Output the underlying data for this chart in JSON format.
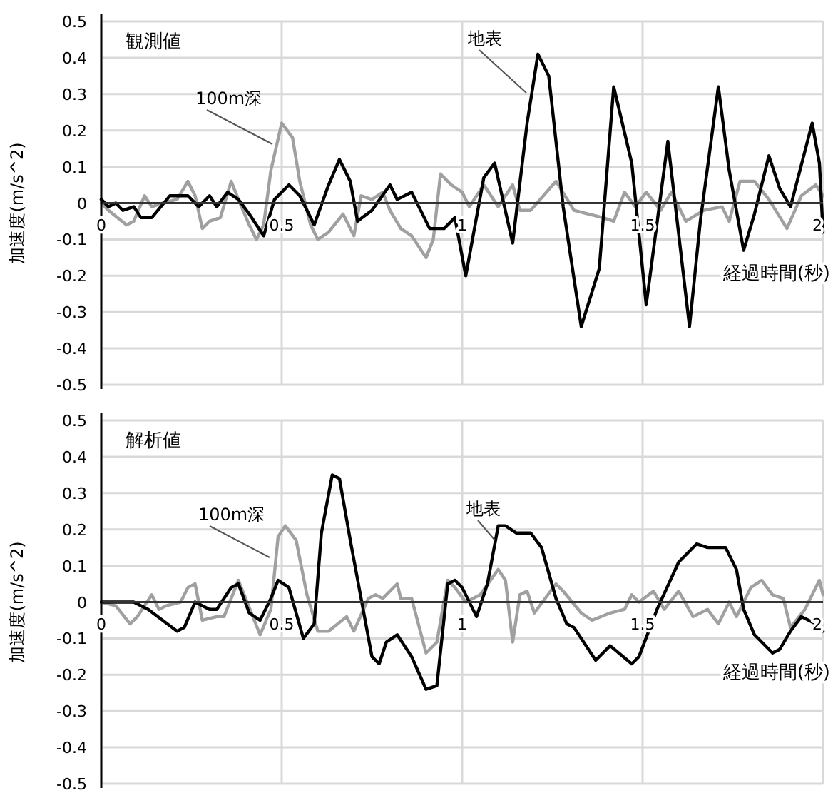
{
  "chart_data": [
    {
      "type": "line",
      "title": "観測値",
      "ylabel": "加速度(m/s^2)",
      "xlabel": "経過時間(秒)",
      "xlim": [
        0,
        2
      ],
      "ylim": [
        -0.5,
        0.5
      ],
      "xticks": [
        0,
        0.5,
        1,
        1.5,
        2
      ],
      "yticks": [
        -0.5,
        -0.4,
        -0.3,
        -0.2,
        -0.1,
        0,
        0.1,
        0.2,
        0.3,
        0.4,
        0.5
      ],
      "grid": true,
      "legend": false,
      "marker": "none",
      "line_style": "solid",
      "series": [
        {
          "name": "100m深",
          "color": "#a0a0a0",
          "x": [
            0,
            0.02,
            0.07,
            0.09,
            0.12,
            0.14,
            0.17,
            0.21,
            0.24,
            0.26,
            0.28,
            0.3,
            0.33,
            0.36,
            0.38,
            0.41,
            0.43,
            0.45,
            0.47,
            0.5,
            0.53,
            0.55,
            0.58,
            0.6,
            0.63,
            0.67,
            0.7,
            0.72,
            0.75,
            0.78,
            0.8,
            0.83,
            0.86,
            0.9,
            0.92,
            0.94,
            0.97,
            1.0,
            1.02,
            1.06,
            1.1,
            1.14,
            1.16,
            1.19,
            1.26,
            1.31,
            1.35,
            1.39,
            1.42,
            1.45,
            1.48,
            1.51,
            1.55,
            1.58,
            1.62,
            1.67,
            1.72,
            1.74,
            1.77,
            1.81,
            1.85,
            1.9,
            1.94,
            1.98,
            2.0
          ],
          "values": [
            0,
            -0.02,
            -0.06,
            -0.05,
            0.02,
            -0.01,
            0,
            0.01,
            0.06,
            0.02,
            -0.07,
            -0.05,
            -0.04,
            0.06,
            0.01,
            -0.06,
            -0.1,
            -0.06,
            0.09,
            0.22,
            0.18,
            0.06,
            -0.06,
            -0.1,
            -0.08,
            -0.03,
            -0.09,
            0.02,
            0.01,
            0.03,
            -0.02,
            -0.07,
            -0.09,
            -0.15,
            -0.1,
            0.08,
            0.05,
            0.03,
            -0.01,
            0.05,
            -0.01,
            0.05,
            -0.02,
            -0.02,
            0.06,
            -0.02,
            -0.03,
            -0.04,
            -0.05,
            0.03,
            -0.01,
            0.03,
            -0.02,
            0.03,
            -0.05,
            -0.02,
            -0.01,
            -0.05,
            0.06,
            0.06,
            0.01,
            -0.07,
            0.02,
            0.05,
            0.02
          ]
        },
        {
          "name": "地表",
          "color": "#000000",
          "x": [
            0,
            0.02,
            0.04,
            0.06,
            0.09,
            0.11,
            0.14,
            0.19,
            0.22,
            0.24,
            0.27,
            0.3,
            0.32,
            0.35,
            0.38,
            0.41,
            0.45,
            0.48,
            0.52,
            0.55,
            0.59,
            0.63,
            0.66,
            0.69,
            0.71,
            0.75,
            0.8,
            0.82,
            0.86,
            0.91,
            0.95,
            0.98,
            1.01,
            1.06,
            1.09,
            1.14,
            1.18,
            1.21,
            1.24,
            1.28,
            1.33,
            1.38,
            1.42,
            1.47,
            1.51,
            1.57,
            1.63,
            1.66,
            1.71,
            1.74,
            1.78,
            1.81,
            1.85,
            1.88,
            1.91,
            1.97,
            1.99,
            2.0
          ],
          "values": [
            0.01,
            -0.01,
            0,
            -0.02,
            -0.01,
            -0.04,
            -0.04,
            0.02,
            0.02,
            0.02,
            -0.01,
            0.02,
            -0.01,
            0.03,
            0.01,
            -0.03,
            -0.09,
            0.01,
            0.05,
            0.02,
            -0.06,
            0.05,
            0.12,
            0.06,
            -0.05,
            -0.02,
            0.05,
            0.01,
            0.03,
            -0.07,
            -0.07,
            -0.04,
            -0.2,
            0.07,
            0.11,
            -0.11,
            0.22,
            0.41,
            0.35,
            -0.01,
            -0.34,
            -0.18,
            0.32,
            0.11,
            -0.28,
            0.17,
            -0.34,
            -0.05,
            0.32,
            0.09,
            -0.13,
            -0.03,
            0.13,
            0.04,
            -0.01,
            0.22,
            0.11,
            -0.08
          ]
        }
      ]
    },
    {
      "type": "line",
      "title": "解析値",
      "ylabel": "加速度(m/s^2)",
      "xlabel": "経過時間(秒)",
      "xlim": [
        0,
        2
      ],
      "ylim": [
        -0.5,
        0.5
      ],
      "xticks": [
        0,
        0.5,
        1,
        1.5,
        2
      ],
      "yticks": [
        -0.5,
        -0.4,
        -0.3,
        -0.2,
        -0.1,
        0,
        0.1,
        0.2,
        0.3,
        0.4,
        0.5
      ],
      "grid": true,
      "legend": false,
      "marker": "none",
      "line_style": "solid",
      "series": [
        {
          "name": "100m深",
          "color": "#a0a0a0",
          "x": [
            0,
            0.04,
            0.08,
            0.1,
            0.14,
            0.16,
            0.18,
            0.22,
            0.24,
            0.26,
            0.28,
            0.32,
            0.34,
            0.38,
            0.4,
            0.42,
            0.44,
            0.47,
            0.49,
            0.51,
            0.54,
            0.57,
            0.6,
            0.63,
            0.68,
            0.7,
            0.74,
            0.76,
            0.78,
            0.82,
            0.83,
            0.86,
            0.9,
            0.93,
            0.96,
            0.98,
            1.01,
            1.05,
            1.1,
            1.12,
            1.14,
            1.16,
            1.18,
            1.2,
            1.26,
            1.28,
            1.33,
            1.36,
            1.41,
            1.45,
            1.47,
            1.49,
            1.53,
            1.56,
            1.6,
            1.64,
            1.68,
            1.71,
            1.74,
            1.76,
            1.8,
            1.83,
            1.86,
            1.89,
            1.91,
            1.95,
            1.97,
            1.99,
            2.0
          ],
          "values": [
            0,
            -0.01,
            -0.06,
            -0.04,
            0.02,
            -0.02,
            -0.01,
            0,
            0.04,
            0.05,
            -0.05,
            -0.04,
            -0.04,
            0.06,
            0.01,
            -0.04,
            -0.09,
            -0.02,
            0.18,
            0.21,
            0.17,
            0.02,
            -0.08,
            -0.08,
            -0.04,
            -0.08,
            0.01,
            0.02,
            0.01,
            0.05,
            0.01,
            0.01,
            -0.14,
            -0.11,
            0.06,
            0.04,
            0,
            0.02,
            0.09,
            0.06,
            -0.11,
            0.02,
            0.03,
            -0.03,
            0.05,
            0.03,
            -0.03,
            -0.05,
            -0.03,
            -0.02,
            0.02,
            0,
            0.03,
            -0.02,
            0.03,
            -0.04,
            -0.02,
            -0.06,
            0,
            -0.04,
            0.04,
            0.06,
            0.02,
            0.01,
            -0.07,
            -0.02,
            0.02,
            0.06,
            0.02
          ]
        },
        {
          "name": "地表",
          "color": "#000000",
          "x": [
            0,
            0.09,
            0.13,
            0.17,
            0.21,
            0.23,
            0.26,
            0.3,
            0.32,
            0.36,
            0.38,
            0.41,
            0.44,
            0.47,
            0.49,
            0.52,
            0.56,
            0.59,
            0.61,
            0.64,
            0.66,
            0.69,
            0.72,
            0.75,
            0.77,
            0.79,
            0.82,
            0.86,
            0.9,
            0.93,
            0.96,
            0.98,
            1.0,
            1.04,
            1.07,
            1.1,
            1.12,
            1.15,
            1.19,
            1.22,
            1.26,
            1.29,
            1.31,
            1.37,
            1.41,
            1.47,
            1.49,
            1.54,
            1.6,
            1.65,
            1.68,
            1.71,
            1.73,
            1.76,
            1.78,
            1.81,
            1.86,
            1.88,
            1.91,
            1.94,
            1.98,
            2.0
          ],
          "values": [
            0,
            0,
            -0.02,
            -0.05,
            -0.08,
            -0.07,
            0,
            -0.02,
            -0.02,
            0.04,
            0.05,
            -0.03,
            -0.05,
            0.01,
            0.06,
            0.04,
            -0.1,
            -0.06,
            0.19,
            0.35,
            0.34,
            0.17,
            0.01,
            -0.15,
            -0.17,
            -0.11,
            -0.09,
            -0.15,
            -0.24,
            -0.23,
            0.05,
            0.06,
            0.04,
            -0.04,
            0.05,
            0.21,
            0.21,
            0.19,
            0.19,
            0.15,
            0.01,
            -0.06,
            -0.07,
            -0.16,
            -0.12,
            -0.17,
            -0.15,
            -0.02,
            0.11,
            0.16,
            0.15,
            0.15,
            0.15,
            0.09,
            -0.02,
            -0.09,
            -0.14,
            -0.13,
            -0.08,
            -0.04,
            -0.06,
            -0.08
          ]
        }
      ]
    }
  ]
}
